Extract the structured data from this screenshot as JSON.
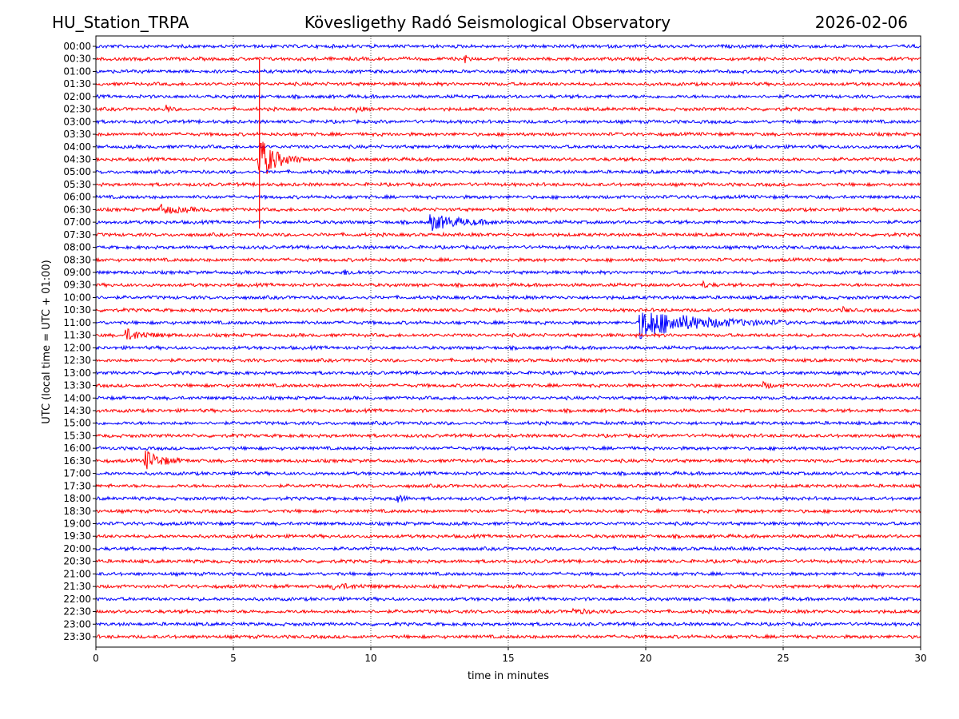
{
  "header": {
    "station": "HU_Station_TRPA",
    "observatory": "Kövesligethy Radó Seismological Observatory",
    "date": "2026-02-06"
  },
  "chart_data": {
    "type": "helicorder",
    "title": "Kövesligethy Radó Seismological Observatory",
    "xlabel": "time in minutes",
    "ylabel": "UTC (local time = UTC + 01:00)",
    "xlim": [
      0,
      30
    ],
    "x_ticks": [
      0,
      5,
      10,
      15,
      20,
      25,
      30
    ],
    "x_tick_labels": [
      "0",
      "5",
      "10",
      "15",
      "20",
      "25",
      "30"
    ],
    "vertical_gridlines": [
      5,
      10,
      15,
      20,
      25
    ],
    "grid": true,
    "line_colors": [
      "#0000ff",
      "#ff0000"
    ],
    "lines": [
      "00:00",
      "00:30",
      "01:00",
      "01:30",
      "02:00",
      "02:30",
      "03:00",
      "03:30",
      "04:00",
      "04:30",
      "05:00",
      "05:30",
      "06:00",
      "06:30",
      "07:00",
      "07:30",
      "08:00",
      "08:30",
      "09:00",
      "09:30",
      "10:00",
      "10:30",
      "11:00",
      "11:30",
      "12:00",
      "12:30",
      "13:00",
      "13:30",
      "14:00",
      "14:30",
      "15:00",
      "15:30",
      "16:00",
      "16:30",
      "17:00",
      "17:30",
      "18:00",
      "18:30",
      "19:00",
      "19:30",
      "20:00",
      "20:30",
      "21:00",
      "21:30",
      "22:00",
      "22:30",
      "23:00",
      "23:30"
    ],
    "events": [
      {
        "line": "00:30",
        "minute": 13.4,
        "duration": 0.3,
        "amplitude": 0.35
      },
      {
        "line": "02:30",
        "minute": 2.6,
        "duration": 0.3,
        "amplitude": 0.25
      },
      {
        "line": "02:30",
        "minute": 9.5,
        "duration": 0.4,
        "amplitude": 0.22
      },
      {
        "line": "04:30",
        "minute": 5.95,
        "duration": 1.6,
        "amplitude": 1.8
      },
      {
        "line": "06:30",
        "minute": 2.3,
        "duration": 2.2,
        "amplitude": 0.35
      },
      {
        "line": "07:00",
        "minute": 12.2,
        "duration": 3.0,
        "amplitude": 0.6
      },
      {
        "line": "09:00",
        "minute": 9.0,
        "duration": 1.5,
        "amplitude": 0.15
      },
      {
        "line": "09:30",
        "minute": 22.1,
        "duration": 0.6,
        "amplitude": 0.2
      },
      {
        "line": "10:30",
        "minute": 27.2,
        "duration": 0.5,
        "amplitude": 0.18
      },
      {
        "line": "11:00",
        "minute": 19.8,
        "duration": 5.5,
        "amplitude": 1.2
      },
      {
        "line": "11:30",
        "minute": 1.1,
        "duration": 1.8,
        "amplitude": 0.45
      },
      {
        "line": "13:30",
        "minute": 24.3,
        "duration": 0.9,
        "amplitude": 0.2
      },
      {
        "line": "16:30",
        "minute": 1.8,
        "duration": 1.6,
        "amplitude": 0.8
      },
      {
        "line": "18:00",
        "minute": 10.9,
        "duration": 0.7,
        "amplitude": 0.35
      },
      {
        "line": "21:30",
        "minute": 8.6,
        "duration": 2.5,
        "amplitude": 0.2
      },
      {
        "line": "22:30",
        "minute": 17.4,
        "duration": 1.5,
        "amplitude": 0.15
      }
    ],
    "big_spike": {
      "line": "04:30",
      "minute": 5.95,
      "from_line": "00:30",
      "to_line": "07:00",
      "color": "#ff0000"
    }
  }
}
